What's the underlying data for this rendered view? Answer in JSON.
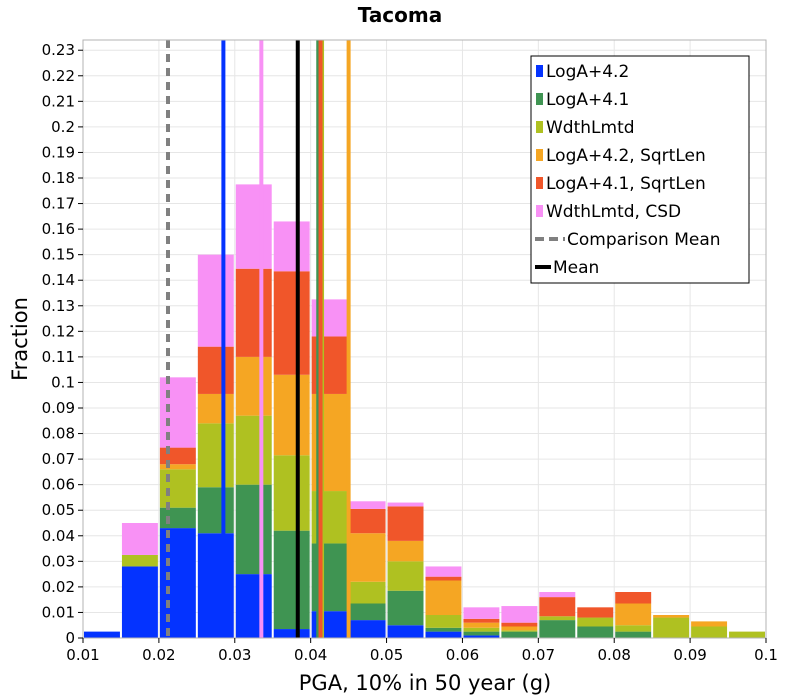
{
  "chart_data": {
    "type": "bar",
    "stacked": true,
    "title": "Tacoma",
    "xlabel": "PGA, 10% in 50 year (g)",
    "ylabel": "Fraction",
    "xlim": [
      0.01,
      0.1
    ],
    "ylim": [
      0,
      0.234
    ],
    "grid": true,
    "legend_position": "top-right",
    "x_ticks": [
      "0.01",
      "0.02",
      "0.03",
      "0.04",
      "0.05",
      "0.06",
      "0.07",
      "0.08",
      "0.09",
      "0.1"
    ],
    "x_tick_values": [
      0.01,
      0.02,
      0.03,
      0.04,
      0.05,
      0.06,
      0.07,
      0.08,
      0.09,
      0.1
    ],
    "y_ticks": [
      "0",
      "0.01",
      "0.02",
      "0.03",
      "0.04",
      "0.05",
      "0.06",
      "0.07",
      "0.08",
      "0.09",
      "0.1",
      "0.11",
      "0.12",
      "0.13",
      "0.14",
      "0.15",
      "0.16",
      "0.17",
      "0.18",
      "0.19",
      "0.2",
      "0.21",
      "0.22",
      "0.23"
    ],
    "y_tick_values": [
      0,
      0.01,
      0.02,
      0.03,
      0.04,
      0.05,
      0.06,
      0.07,
      0.08,
      0.09,
      0.1,
      0.11,
      0.12,
      0.13,
      0.14,
      0.15,
      0.16,
      0.17,
      0.18,
      0.19,
      0.2,
      0.21,
      0.22,
      0.23
    ],
    "bin_width": 0.005,
    "bin_starts": [
      0.01,
      0.015,
      0.02,
      0.025,
      0.03,
      0.035,
      0.04,
      0.045,
      0.05,
      0.055,
      0.06,
      0.065,
      0.07,
      0.075,
      0.08,
      0.085,
      0.09,
      0.095
    ],
    "series": [
      {
        "name": "LogA+4.2",
        "color": "#0433ff",
        "values": [
          0.0025,
          0.028,
          0.043,
          0.041,
          0.025,
          0.0035,
          0.0105,
          0.007,
          0.005,
          0.0025,
          0.001,
          0.0,
          0.0,
          0.0,
          0.0,
          0.0,
          0.0,
          0.0
        ]
      },
      {
        "name": "LogA+4.1",
        "color": "#3f9452",
        "values": [
          0.0,
          0.0,
          0.008,
          0.018,
          0.035,
          0.0385,
          0.0265,
          0.0065,
          0.0135,
          0.0015,
          0.0015,
          0.0025,
          0.007,
          0.0045,
          0.0025,
          0.0,
          0.0,
          0.0
        ]
      },
      {
        "name": "WdthLmtd",
        "color": "#afc121",
        "values": [
          0.0,
          0.0045,
          0.015,
          0.025,
          0.027,
          0.0295,
          0.0205,
          0.0085,
          0.0115,
          0.005,
          0.0015,
          0.0005,
          0.0015,
          0.0035,
          0.0025,
          0.008,
          0.0045,
          0.0025
        ]
      },
      {
        "name": "LogA+4.2, SqrtLen",
        "color": "#f5a623",
        "values": [
          0.0,
          0.0,
          0.002,
          0.0115,
          0.023,
          0.0315,
          0.038,
          0.019,
          0.008,
          0.0135,
          0.002,
          0.0015,
          0.0,
          0.0,
          0.0085,
          0.001,
          0.002,
          0.0
        ]
      },
      {
        "name": "LogA+4.1, SqrtLen",
        "color": "#f0562a",
        "values": [
          0.0,
          0.0,
          0.0065,
          0.0185,
          0.0345,
          0.0405,
          0.0225,
          0.0095,
          0.0135,
          0.0015,
          0.0015,
          0.0015,
          0.0075,
          0.004,
          0.0045,
          0.0,
          0.0,
          0.0
        ]
      },
      {
        "name": "WdthLmtd, CSD",
        "color": "#f891f5",
        "values": [
          0.0,
          0.0125,
          0.0275,
          0.036,
          0.033,
          0.0195,
          0.0145,
          0.003,
          0.0015,
          0.004,
          0.0045,
          0.0065,
          0.002,
          0.0,
          0.0,
          0.0,
          0.0,
          0.0
        ]
      }
    ],
    "vlines": [
      {
        "name": "LogA+4.2",
        "x": 0.0285,
        "color": "#0433ff",
        "style": "solid"
      },
      {
        "name": "WdthLmtd, CSD",
        "x": 0.0335,
        "color": "#f891f5",
        "style": "solid"
      },
      {
        "name": "LogA+4.1",
        "x": 0.041,
        "color": "#3f9452",
        "style": "solid"
      },
      {
        "name": "WdthLmtd",
        "x": 0.0415,
        "color": "#afc121",
        "style": "solid"
      },
      {
        "name": "LogA+4.1, SqrtLen",
        "x": 0.0413,
        "color": "#f0562a",
        "style": "solid"
      },
      {
        "name": "LogA+4.2, SqrtLen",
        "x": 0.045,
        "color": "#f5a623",
        "style": "solid"
      },
      {
        "name": "Comparison Mean",
        "x": 0.0212,
        "color": "#808080",
        "style": "dashed"
      },
      {
        "name": "Mean",
        "x": 0.0383,
        "color": "#000000",
        "style": "solid"
      }
    ],
    "legend": [
      {
        "label": "LogA+4.2",
        "color": "#0433ff",
        "kind": "box"
      },
      {
        "label": "LogA+4.1",
        "color": "#3f9452",
        "kind": "box"
      },
      {
        "label": "WdthLmtd",
        "color": "#afc121",
        "kind": "box"
      },
      {
        "label": "LogA+4.2, SqrtLen",
        "color": "#f5a623",
        "kind": "box"
      },
      {
        "label": "LogA+4.1, SqrtLen",
        "color": "#f0562a",
        "kind": "box"
      },
      {
        "label": "WdthLmtd, CSD",
        "color": "#f891f5",
        "kind": "box"
      },
      {
        "label": "Comparison Mean",
        "color": "#808080",
        "kind": "dash"
      },
      {
        "label": "Mean",
        "color": "#000000",
        "kind": "line"
      }
    ]
  }
}
